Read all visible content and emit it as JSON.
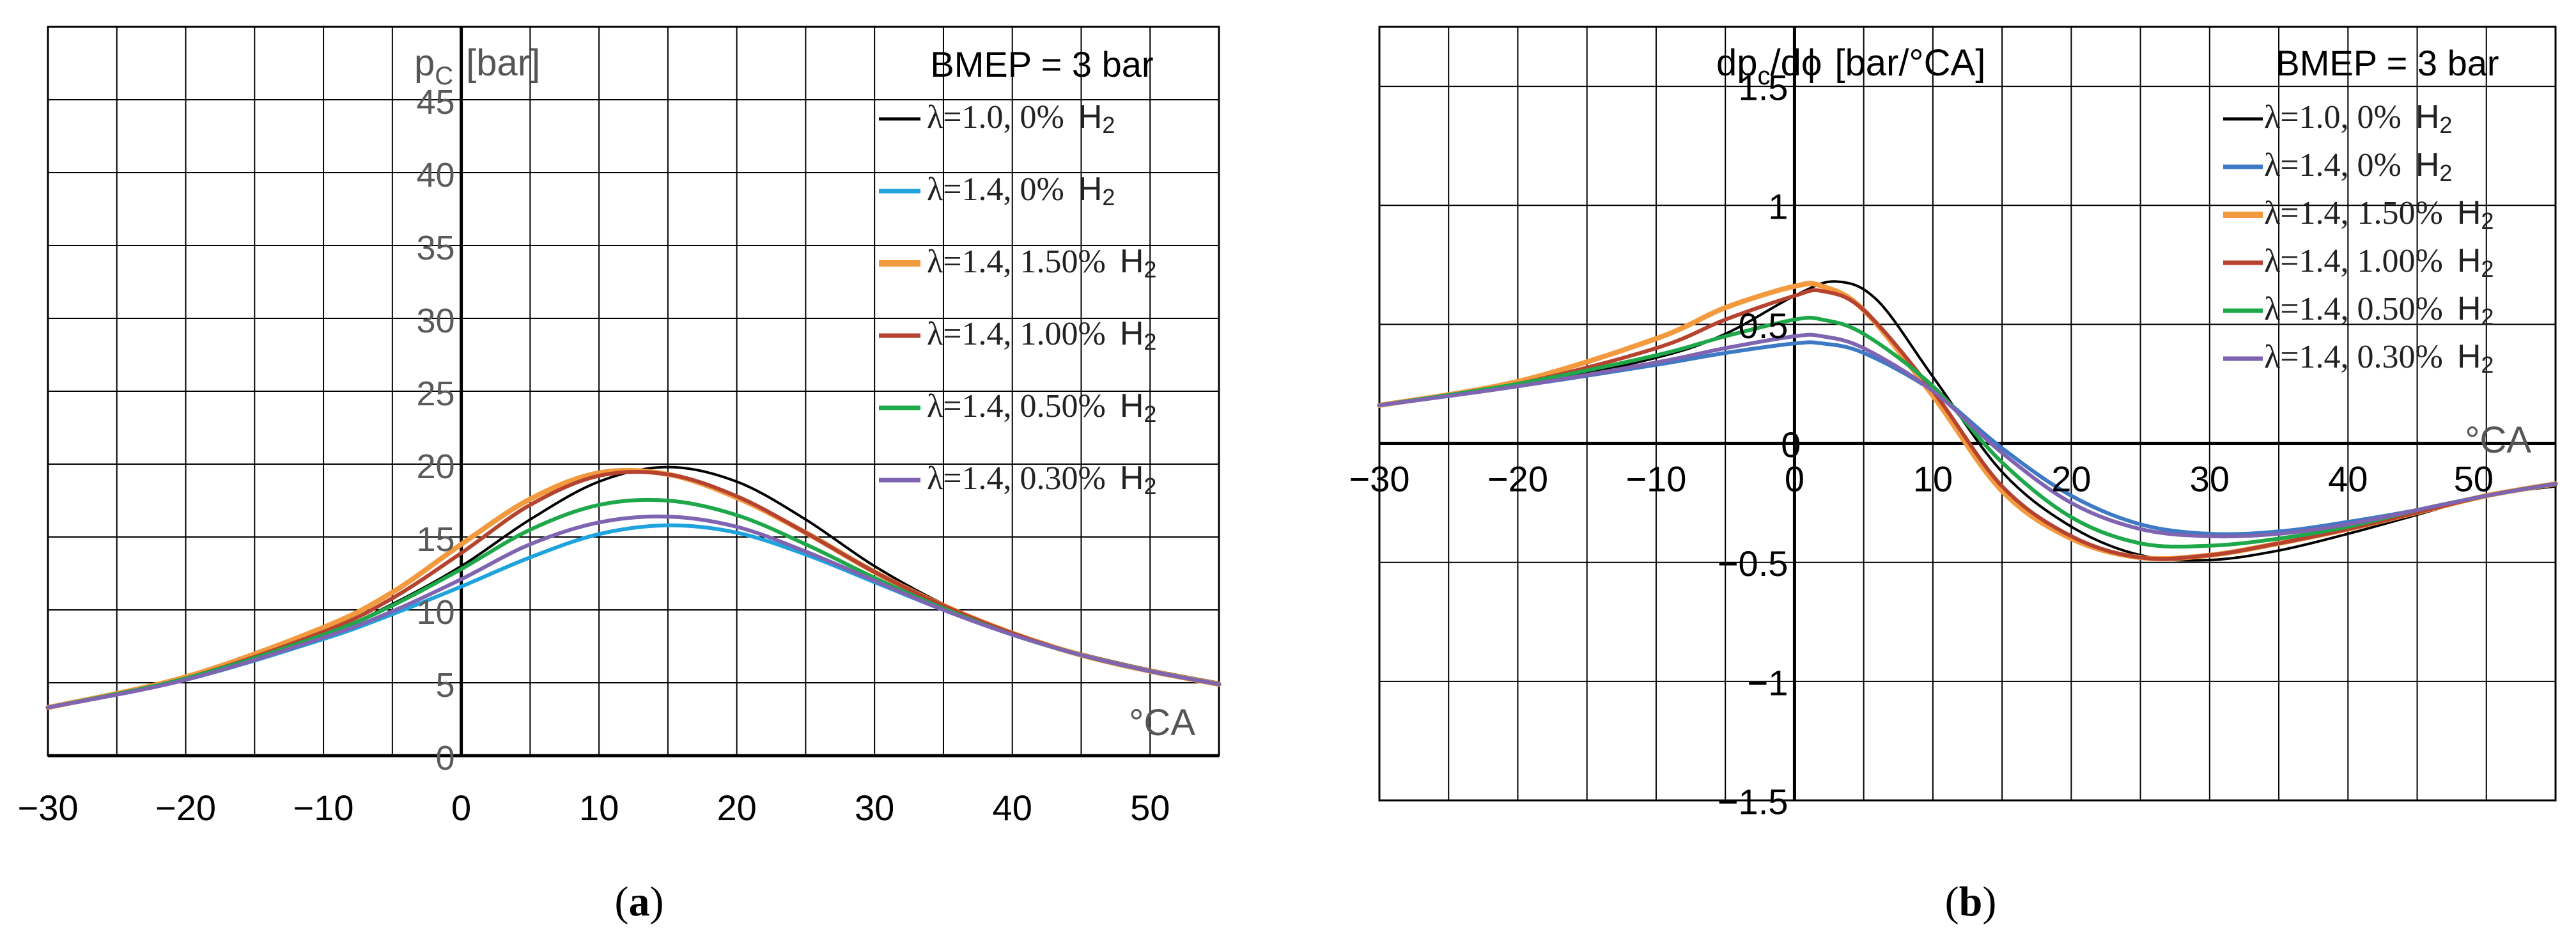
{
  "colors": {
    "black": "#000000",
    "blue_light": "#1fa3de",
    "blue_steel": "#3d79c4",
    "orange": "#f39a3e",
    "red": "#b5432f",
    "green": "#1ea84a",
    "purple": "#7e64b1",
    "grid": "#000000",
    "tick_gray": "#5a5a5a"
  },
  "chart_data": [
    {
      "type": "line",
      "panel_label": "(a)",
      "title": "BMEP = 3 bar",
      "ylabel": "p",
      "ylabel_sub": "C",
      "ylabel_unit": "[bar]",
      "xlabel": "°CA",
      "xlim": [
        -30,
        55
      ],
      "ylim": [
        0,
        50
      ],
      "xticks": [
        -30,
        -20,
        -10,
        0,
        10,
        20,
        30,
        40,
        50
      ],
      "yticks": [
        0,
        5,
        10,
        15,
        20,
        25,
        30,
        35,
        40,
        45
      ],
      "grid": true,
      "legend_position": "top-right",
      "series": [
        {
          "name": "λ=1.0, 0% H2",
          "label_main": "λ=1.0, 0%",
          "label_h": "H",
          "label_sub": "2",
          "color": "#000000",
          "x": [
            -30,
            -20,
            -10,
            -5,
            0,
            5,
            10,
            15,
            20,
            25,
            30,
            35,
            40,
            45,
            50,
            55
          ],
          "y": [
            3.3,
            5.3,
            8.3,
            10.4,
            13.0,
            16.2,
            18.8,
            19.8,
            18.8,
            16.2,
            13.0,
            10.4,
            8.4,
            7.0,
            5.9,
            5.0
          ]
        },
        {
          "name": "λ=1.4, 0% H2",
          "label_main": "λ=1.4, 0%",
          "label_h": "H",
          "label_sub": "2",
          "color": "#1fa3de",
          "x": [
            -30,
            -20,
            -10,
            -5,
            0,
            5,
            10,
            15,
            20,
            25,
            30,
            35,
            40,
            45,
            50,
            55
          ],
          "y": [
            3.3,
            5.2,
            8.0,
            9.7,
            11.6,
            13.6,
            15.2,
            15.8,
            15.3,
            13.8,
            11.9,
            10.0,
            8.3,
            6.9,
            5.8,
            4.9
          ]
        },
        {
          "name": "λ=1.4, 1.50% H2",
          "label_main": "λ=1.4, 1.50%",
          "label_h": "H",
          "label_sub": "2",
          "color": "#f39a3e",
          "x": [
            -30,
            -20,
            -10,
            -5,
            0,
            5,
            10,
            15,
            20,
            25,
            30,
            35,
            40,
            45,
            50,
            55
          ],
          "y": [
            3.3,
            5.4,
            8.8,
            11.2,
            14.5,
            17.6,
            19.4,
            19.3,
            17.7,
            15.3,
            12.6,
            10.3,
            8.4,
            6.9,
            5.8,
            4.9
          ]
        },
        {
          "name": "λ=1.4, 1.00% H2",
          "label_main": "λ=1.4, 1.00%",
          "label_h": "H",
          "label_sub": "2",
          "color": "#b5432f",
          "x": [
            -30,
            -20,
            -10,
            -5,
            0,
            5,
            10,
            15,
            20,
            25,
            30,
            35,
            40,
            45,
            50,
            55
          ],
          "y": [
            3.3,
            5.3,
            8.5,
            10.8,
            13.9,
            17.2,
            19.2,
            19.3,
            17.8,
            15.3,
            12.6,
            10.3,
            8.4,
            6.9,
            5.8,
            4.9
          ]
        },
        {
          "name": "λ=1.4, 0.50% H2",
          "label_main": "λ=1.4, 0.50%",
          "label_h": "H",
          "label_sub": "2",
          "color": "#1ea84a",
          "x": [
            -30,
            -20,
            -10,
            -5,
            0,
            5,
            10,
            15,
            20,
            25,
            30,
            35,
            40,
            45,
            50,
            55
          ],
          "y": [
            3.3,
            5.3,
            8.3,
            10.3,
            12.8,
            15.5,
            17.2,
            17.5,
            16.5,
            14.5,
            12.2,
            10.1,
            8.3,
            6.9,
            5.8,
            4.9
          ]
        },
        {
          "name": "λ=1.4, 0.30% H2",
          "label_main": "λ=1.4, 0.30%",
          "label_h": "H",
          "label_sub": "2",
          "color": "#7e64b1",
          "x": [
            -30,
            -20,
            -10,
            -5,
            0,
            5,
            10,
            15,
            20,
            25,
            30,
            35,
            40,
            45,
            50,
            55
          ],
          "y": [
            3.3,
            5.2,
            8.1,
            9.9,
            12.1,
            14.5,
            16.0,
            16.4,
            15.7,
            14.0,
            12.0,
            10.0,
            8.3,
            6.9,
            5.8,
            4.9
          ]
        }
      ]
    },
    {
      "type": "line",
      "panel_label": "(b)",
      "title": "BMEP = 3 bar",
      "ylabel": "dp",
      "ylabel_sub": "c",
      "ylabel_rest": "/dϕ",
      "ylabel_unit": "[bar/°CA]",
      "xlabel": "°CA",
      "xlim": [
        -30,
        55
      ],
      "ylim": [
        -1.5,
        1.75
      ],
      "xticks": [
        -30,
        -20,
        -10,
        0,
        10,
        20,
        30,
        40,
        50
      ],
      "yticks": [
        -1.5,
        -1,
        -0.5,
        0,
        0.5,
        1,
        1.5
      ],
      "ytick_labels": [
        "−1.5",
        "−1",
        "−0.5",
        "0",
        "0.5",
        "1",
        "1.5"
      ],
      "xtick_labels": [
        "−30",
        "−20",
        "−10",
        "0",
        "10",
        "20",
        "30",
        "40",
        "50"
      ],
      "grid": true,
      "legend_position": "top-right",
      "series": [
        {
          "name": "λ=1.0, 0% H2",
          "label_main": "λ=1.0, 0%",
          "label_h": "H",
          "label_sub": "2",
          "color": "#000000",
          "x": [
            -30,
            -20,
            -10,
            -5,
            0,
            3,
            6,
            10,
            15,
            20,
            25,
            30,
            35,
            40,
            45,
            50,
            55
          ],
          "y": [
            0.16,
            0.24,
            0.36,
            0.46,
            0.62,
            0.68,
            0.6,
            0.28,
            -0.12,
            -0.35,
            -0.47,
            -0.49,
            -0.45,
            -0.38,
            -0.3,
            -0.22,
            -0.18
          ]
        },
        {
          "name": "λ=1.4, 0% H2",
          "label_main": "λ=1.4, 0%",
          "label_h": "H",
          "label_sub": "2",
          "color": "#3d79c4",
          "x": [
            -30,
            -20,
            -10,
            -5,
            0,
            2,
            5,
            10,
            15,
            20,
            25,
            30,
            35,
            40,
            45,
            50,
            55
          ],
          "y": [
            0.16,
            0.24,
            0.33,
            0.38,
            0.42,
            0.42,
            0.38,
            0.22,
            -0.02,
            -0.22,
            -0.34,
            -0.38,
            -0.37,
            -0.33,
            -0.28,
            -0.22,
            -0.17
          ]
        },
        {
          "name": "λ=1.4, 1.50% H2",
          "label_main": "λ=1.4, 1.50%",
          "label_h": "H",
          "label_sub": "2",
          "color": "#f39a3e",
          "x": [
            -30,
            -20,
            -10,
            -5,
            0,
            2,
            5,
            10,
            15,
            20,
            25,
            30,
            35,
            40,
            45,
            50,
            55
          ],
          "y": [
            0.16,
            0.26,
            0.44,
            0.57,
            0.66,
            0.66,
            0.56,
            0.2,
            -0.2,
            -0.4,
            -0.48,
            -0.47,
            -0.42,
            -0.36,
            -0.29,
            -0.22,
            -0.17
          ]
        },
        {
          "name": "λ=1.4, 1.00% H2",
          "label_main": "λ=1.4, 1.00%",
          "label_h": "H",
          "label_sub": "2",
          "color": "#b5432f",
          "x": [
            -30,
            -20,
            -10,
            -5,
            0,
            2,
            5,
            10,
            15,
            20,
            25,
            30,
            35,
            40,
            45,
            50,
            55
          ],
          "y": [
            0.16,
            0.25,
            0.4,
            0.52,
            0.62,
            0.64,
            0.56,
            0.22,
            -0.18,
            -0.39,
            -0.48,
            -0.47,
            -0.42,
            -0.36,
            -0.29,
            -0.22,
            -0.17
          ]
        },
        {
          "name": "λ=1.4, 0.50% H2",
          "label_main": "λ=1.4, 0.50%",
          "label_h": "H",
          "label_sub": "2",
          "color": "#1ea84a",
          "x": [
            -30,
            -20,
            -10,
            -5,
            0,
            2,
            5,
            10,
            15,
            20,
            25,
            30,
            35,
            40,
            45,
            50,
            55
          ],
          "y": [
            0.16,
            0.25,
            0.37,
            0.45,
            0.52,
            0.52,
            0.46,
            0.24,
            -0.08,
            -0.31,
            -0.42,
            -0.43,
            -0.4,
            -0.35,
            -0.28,
            -0.22,
            -0.17
          ]
        },
        {
          "name": "λ=1.4, 0.30% H2",
          "label_main": "λ=1.4, 0.30%",
          "label_h": "H",
          "label_sub": "2",
          "color": "#7e64b1",
          "x": [
            -30,
            -20,
            -10,
            -5,
            0,
            2,
            5,
            10,
            15,
            20,
            25,
            30,
            35,
            40,
            45,
            50,
            55
          ],
          "y": [
            0.16,
            0.24,
            0.34,
            0.4,
            0.45,
            0.45,
            0.4,
            0.22,
            -0.04,
            -0.25,
            -0.36,
            -0.39,
            -0.38,
            -0.34,
            -0.28,
            -0.22,
            -0.17
          ]
        }
      ]
    }
  ]
}
